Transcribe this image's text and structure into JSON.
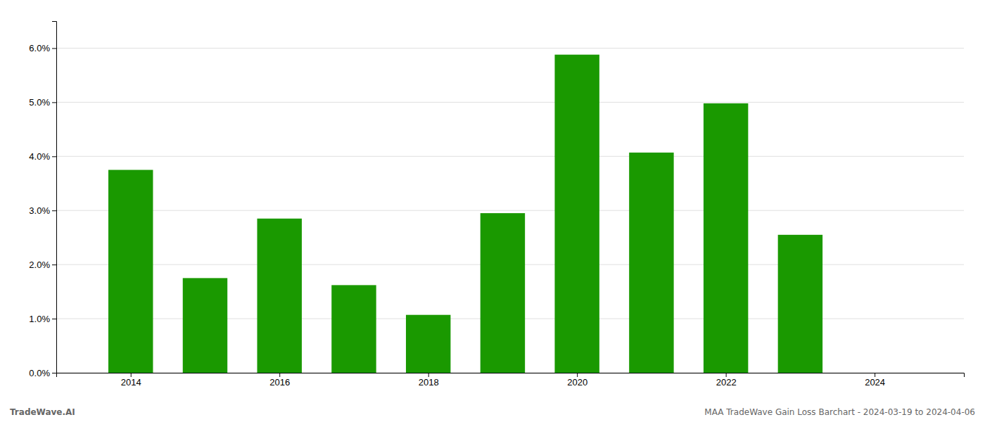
{
  "chart_data": {
    "type": "bar",
    "x": [
      2014,
      2015,
      2016,
      2017,
      2018,
      2019,
      2020,
      2021,
      2022,
      2023
    ],
    "values": [
      0.0375,
      0.0175,
      0.0285,
      0.0162,
      0.0107,
      0.0295,
      0.0588,
      0.0407,
      0.0498,
      0.0255
    ],
    "color": "#1a9900",
    "xlim": [
      2013.0,
      2025.2
    ],
    "xticks": [
      2014,
      2016,
      2018,
      2020,
      2022,
      2024
    ],
    "ylim": [
      0,
      0.065
    ],
    "yticks": [
      {
        "value": 0.0,
        "label": "0.0%"
      },
      {
        "value": 0.01,
        "label": "1.0%"
      },
      {
        "value": 0.02,
        "label": "2.0%"
      },
      {
        "value": 0.03,
        "label": "3.0%"
      },
      {
        "value": 0.04,
        "label": "4.0%"
      },
      {
        "value": 0.05,
        "label": "5.0%"
      },
      {
        "value": 0.06,
        "label": "6.0%"
      }
    ],
    "grid": true,
    "annotations": [
      "TradeWave.AI",
      "MAA TradeWave Gain Loss Barchart - 2024-03-19 to 2024-04-06"
    ]
  }
}
